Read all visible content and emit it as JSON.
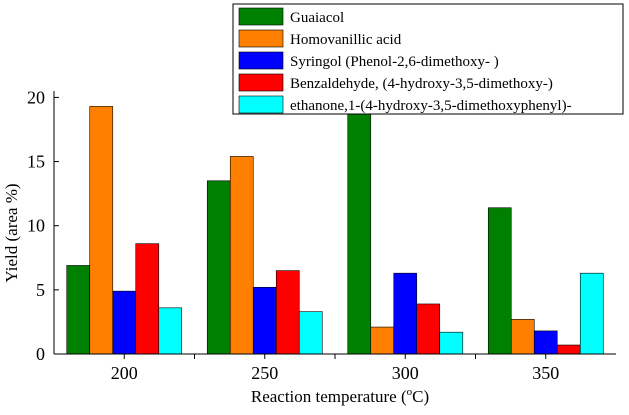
{
  "chart_data": {
    "type": "bar",
    "categories": [
      "200",
      "250",
      "300",
      "350"
    ],
    "series": [
      {
        "name": "Guaiacol",
        "color": "#008000",
        "values": [
          6.9,
          13.5,
          19.2,
          11.4
        ]
      },
      {
        "name": "Homovanillic acid",
        "color": "#ff8000",
        "values": [
          19.3,
          15.4,
          2.1,
          2.7
        ]
      },
      {
        "name": "Syringol (Phenol-2,6-dimethoxy- )",
        "color": "#0000ff",
        "values": [
          4.9,
          5.2,
          6.3,
          1.8
        ]
      },
      {
        "name": "Benzaldehyde, (4-hydroxy-3,5-dimethoxy-)",
        "color": "#ff0000",
        "values": [
          8.6,
          6.5,
          3.9,
          0.7
        ]
      },
      {
        "name": "ethanone,1-(4-hydroxy-3,5-dimethoxyphenyl)-",
        "color": "#00ffff",
        "values": [
          3.6,
          3.3,
          1.7,
          6.3
        ]
      }
    ],
    "xlabel": {
      "main": "Reaction temperature (",
      "sup": "o",
      "tail": "C)"
    },
    "ylabel": "Yield (area  %)",
    "ylim": [
      0,
      20.5
    ],
    "yticks": [
      0,
      5,
      10,
      15,
      20
    ],
    "grid": false,
    "legend_position": "top-right"
  }
}
